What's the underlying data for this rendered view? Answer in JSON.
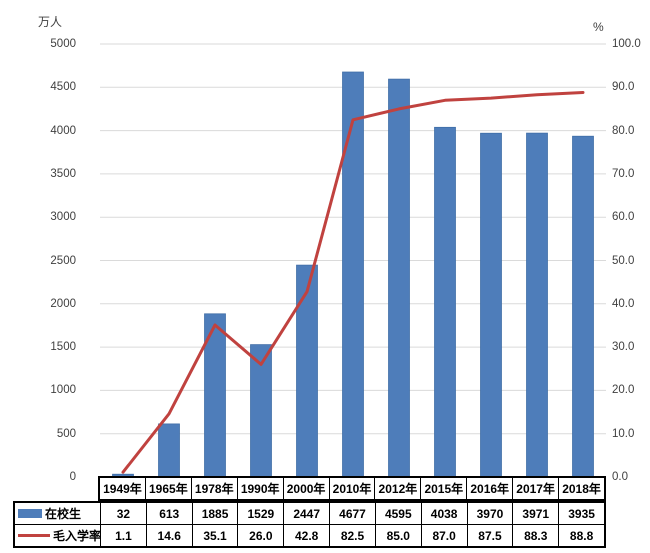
{
  "chart_data": {
    "type": "bar",
    "subtype": "combo-bar-line-dual-axis",
    "categories": [
      "1949年",
      "1965年",
      "1978年",
      "1990年",
      "2000年",
      "2010年",
      "2012年",
      "2015年",
      "2016年",
      "2017年",
      "2018年"
    ],
    "series": [
      {
        "name": "在校生",
        "chart_type": "bar",
        "axis": "left",
        "color": "#4E7DBA",
        "border_color": "#3E6CA5",
        "decimals": 0,
        "values": [
          32,
          613,
          1885,
          1529,
          2447,
          4677,
          4595,
          4038,
          3970,
          3971,
          3935
        ]
      },
      {
        "name": "毛入学率",
        "chart_type": "line",
        "axis": "right",
        "color": "#C0423F",
        "decimals": 1,
        "values": [
          1.1,
          14.6,
          35.1,
          26.0,
          42.8,
          82.5,
          85.0,
          87.0,
          87.5,
          88.3,
          88.8
        ]
      }
    ],
    "left_axis": {
      "title": "万人",
      "min": 0,
      "max": 5000,
      "step": 500,
      "decimals": 0
    },
    "right_axis": {
      "title": "%",
      "min": 0,
      "max": 100,
      "step": 10,
      "decimals": 1
    },
    "gridlines": {
      "show": true,
      "color": "#DADADA"
    },
    "legend_position": "data-table-left",
    "data_table_shown": true,
    "text_color": "#404040",
    "table_border_color": "#000000",
    "background": "#ffffff"
  }
}
